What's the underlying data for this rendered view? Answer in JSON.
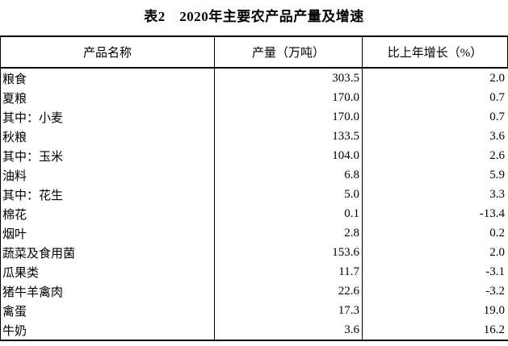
{
  "title": "表2　2020年主要农产品产量及增速",
  "table": {
    "headers": [
      "产品名称",
      "产量（万吨）",
      "比上年增长（%）"
    ],
    "rows": [
      {
        "name": "粮食",
        "indent": 0,
        "output": "303.5",
        "growth": "2.0"
      },
      {
        "name": "夏粮",
        "indent": 1,
        "output": "170.0",
        "growth": "0.7"
      },
      {
        "name": "其中：小麦",
        "indent": 2,
        "output": "170.0",
        "growth": "0.7"
      },
      {
        "name": "秋粮",
        "indent": 1,
        "output": "133.5",
        "growth": "3.6"
      },
      {
        "name": "其中：玉米",
        "indent": 2,
        "output": "104.0",
        "growth": "2.6"
      },
      {
        "name": "油料",
        "indent": 0,
        "output": "6.8",
        "growth": "5.9"
      },
      {
        "name": "其中：花生",
        "indent": 1,
        "output": "5.0",
        "growth": "3.3"
      },
      {
        "name": "棉花",
        "indent": 0,
        "output": "0.1",
        "growth": "-13.4"
      },
      {
        "name": "烟叶",
        "indent": 0,
        "output": "2.8",
        "growth": "0.2"
      },
      {
        "name": "蔬菜及食用菌",
        "indent": 0,
        "output": "153.6",
        "growth": "2.0"
      },
      {
        "name": "瓜果类",
        "indent": 0,
        "output": "11.7",
        "growth": "-3.1"
      },
      {
        "name": "猪牛羊禽肉",
        "indent": 0,
        "output": "22.6",
        "growth": "-3.2"
      },
      {
        "name": "禽蛋",
        "indent": 0,
        "output": "17.3",
        "growth": "19.0"
      },
      {
        "name": "牛奶",
        "indent": 0,
        "output": "3.6",
        "growth": "16.2"
      }
    ]
  },
  "colors": {
    "text": "#000000",
    "border": "#000000",
    "background": "#ffffff"
  }
}
